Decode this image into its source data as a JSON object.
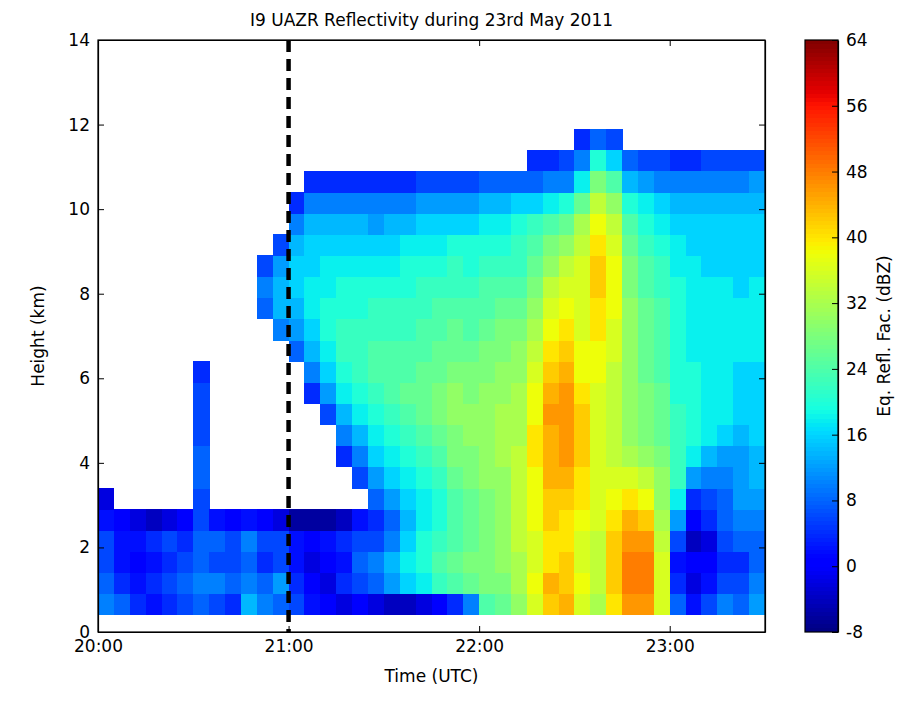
{
  "chart_data": {
    "type": "heatmap",
    "title": "I9 UAZR Reflectivity during 23rd May 2011",
    "xlabel": "Time (UTC)",
    "ylabel": "Height (km)",
    "xlim": [
      1200,
      1410
    ],
    "xticks": [
      {
        "value": 1200,
        "label": "20:00"
      },
      {
        "value": 1260,
        "label": "21:00"
      },
      {
        "value": 1320,
        "label": "22:00"
      },
      {
        "value": 1380,
        "label": "23:00"
      }
    ],
    "ylim": [
      0,
      14
    ],
    "yticks": [
      0,
      2,
      4,
      6,
      8,
      10,
      12,
      14
    ],
    "vlines": [
      1260
    ],
    "colorbar": {
      "label": "Eq. Refl. Fac. (dBZ)",
      "lim": [
        -8,
        64
      ],
      "ticks": [
        -8,
        0,
        8,
        16,
        24,
        32,
        40,
        48,
        56,
        64
      ]
    },
    "x_bins": [
      1200,
      1205,
      1210,
      1215,
      1220,
      1225,
      1230,
      1235,
      1240,
      1245,
      1250,
      1255,
      1260,
      1265,
      1270,
      1275,
      1280,
      1285,
      1290,
      1295,
      1300,
      1305,
      1310,
      1315,
      1320,
      1325,
      1330,
      1335,
      1340,
      1345,
      1350,
      1355,
      1360,
      1365,
      1370,
      1375,
      1380,
      1385,
      1390,
      1395,
      1400,
      1405,
      1410
    ],
    "y_bins": [
      0.4,
      0.9,
      1.4,
      1.9,
      2.4,
      2.9,
      3.4,
      3.9,
      4.4,
      4.9,
      5.4,
      5.9,
      6.4,
      6.9,
      7.4,
      7.9,
      8.4,
      8.9,
      9.4,
      9.9,
      10.4,
      10.9,
      11.4,
      11.9
    ],
    "cells": [
      [
        10,
        8,
        6,
        6,
        2,
        -2,
        null,
        null,
        null,
        null,
        null,
        null,
        null,
        null,
        null,
        null,
        null,
        null,
        null,
        null,
        null,
        null,
        null
      ],
      [
        8,
        4,
        2,
        2,
        0,
        null,
        null,
        null,
        null,
        null,
        null,
        null,
        null,
        null,
        null,
        null,
        null,
        null,
        null,
        null,
        null,
        null,
        null
      ],
      [
        4,
        2,
        0,
        2,
        -2,
        null,
        null,
        null,
        null,
        null,
        null,
        null,
        null,
        null,
        null,
        null,
        null,
        null,
        null,
        null,
        null,
        null,
        null
      ],
      [
        2,
        4,
        2,
        4,
        -4,
        null,
        null,
        null,
        null,
        null,
        null,
        null,
        null,
        null,
        null,
        null,
        null,
        null,
        null,
        null,
        null,
        null,
        null
      ],
      [
        4,
        6,
        4,
        6,
        -2,
        null,
        null,
        null,
        null,
        null,
        null,
        null,
        null,
        null,
        null,
        null,
        null,
        null,
        null,
        null,
        null,
        null,
        null
      ],
      [
        6,
        8,
        6,
        4,
        0,
        null,
        null,
        null,
        null,
        null,
        null,
        null,
        null,
        null,
        null,
        null,
        null,
        null,
        null,
        null,
        null,
        null,
        null
      ],
      [
        8,
        10,
        8,
        8,
        6,
        6,
        8,
        8,
        6,
        6,
        6,
        4,
        null,
        null,
        null,
        null,
        null,
        null,
        null,
        null,
        null,
        null,
        null
      ],
      [
        6,
        10,
        6,
        8,
        2,
        null,
        null,
        null,
        null,
        null,
        null,
        null,
        null,
        null,
        null,
        null,
        null,
        null,
        null,
        null,
        null,
        null,
        null
      ],
      [
        4,
        8,
        6,
        6,
        0,
        null,
        null,
        null,
        null,
        null,
        null,
        null,
        null,
        null,
        null,
        null,
        null,
        null,
        null,
        null,
        null,
        null,
        null
      ],
      [
        14,
        10,
        8,
        10,
        2,
        null,
        null,
        null,
        null,
        null,
        null,
        null,
        null,
        null,
        null,
        null,
        null,
        null,
        null,
        null,
        null,
        null,
        null
      ],
      [
        10,
        8,
        4,
        6,
        0,
        null,
        null,
        null,
        null,
        null,
        null,
        null,
        null,
        null,
        8,
        10,
        6,
        null,
        null,
        null,
        null,
        null,
        null
      ],
      [
        8,
        12,
        6,
        6,
        -2,
        null,
        null,
        null,
        null,
        null,
        null,
        null,
        null,
        10,
        14,
        14,
        12,
        6,
        null,
        null,
        null,
        null,
        null
      ],
      [
        6,
        4,
        2,
        2,
        -6,
        null,
        null,
        null,
        null,
        null,
        null,
        null,
        8,
        12,
        14,
        16,
        16,
        14,
        10,
        4,
        null,
        null,
        null
      ],
      [
        2,
        0,
        -2,
        0,
        -6,
        null,
        null,
        null,
        null,
        null,
        4,
        10,
        14,
        16,
        18,
        18,
        16,
        16,
        14,
        10,
        4,
        null,
        null
      ],
      [
        0,
        -2,
        0,
        2,
        -6,
        null,
        null,
        null,
        null,
        6,
        12,
        16,
        18,
        20,
        20,
        18,
        18,
        16,
        14,
        10,
        4,
        null,
        null
      ],
      [
        -2,
        4,
        2,
        4,
        -4,
        null,
        null,
        4,
        10,
        14,
        18,
        20,
        22,
        22,
        20,
        20,
        18,
        16,
        14,
        10,
        4,
        null,
        null
      ],
      [
        0,
        6,
        8,
        6,
        2,
        null,
        6,
        10,
        14,
        18,
        20,
        22,
        22,
        22,
        20,
        20,
        18,
        16,
        14,
        10,
        4,
        null,
        null
      ],
      [
        -2,
        8,
        10,
        6,
        4,
        8,
        12,
        16,
        18,
        20,
        22,
        24,
        24,
        22,
        22,
        20,
        18,
        16,
        12,
        10,
        4,
        null,
        null
      ],
      [
        -4,
        12,
        14,
        10,
        8,
        12,
        16,
        18,
        20,
        22,
        24,
        24,
        24,
        22,
        22,
        20,
        18,
        16,
        14,
        10,
        4,
        null,
        null
      ],
      [
        -4,
        16,
        18,
        16,
        14,
        16,
        18,
        20,
        22,
        24,
        26,
        24,
        24,
        22,
        22,
        20,
        20,
        18,
        14,
        10,
        4,
        null,
        null
      ],
      [
        -2,
        18,
        20,
        20,
        18,
        18,
        20,
        22,
        24,
        26,
        26,
        26,
        24,
        24,
        22,
        22,
        20,
        18,
        16,
        12,
        6,
        null,
        null
      ],
      [
        0,
        22,
        24,
        22,
        20,
        20,
        22,
        24,
        26,
        28,
        28,
        26,
        26,
        24,
        24,
        22,
        20,
        18,
        16,
        12,
        6,
        null,
        null
      ],
      [
        4,
        24,
        26,
        24,
        24,
        24,
        26,
        28,
        28,
        30,
        30,
        28,
        26,
        26,
        24,
        22,
        22,
        20,
        16,
        12,
        6,
        null,
        null
      ],
      [
        10,
        26,
        28,
        26,
        26,
        26,
        28,
        28,
        30,
        30,
        28,
        28,
        26,
        24,
        24,
        22,
        20,
        20,
        16,
        12,
        6,
        null,
        null
      ],
      [
        24,
        28,
        28,
        28,
        28,
        28,
        30,
        30,
        30,
        30,
        30,
        28,
        28,
        26,
        24,
        24,
        22,
        20,
        18,
        14,
        8,
        null,
        null
      ],
      [
        26,
        28,
        30,
        30,
        30,
        30,
        30,
        32,
        32,
        32,
        30,
        30,
        28,
        28,
        26,
        24,
        22,
        20,
        18,
        14,
        8,
        null,
        null
      ],
      [
        30,
        32,
        32,
        34,
        34,
        34,
        34,
        34,
        32,
        32,
        32,
        30,
        30,
        28,
        26,
        24,
        22,
        22,
        20,
        16,
        8,
        null,
        null
      ],
      [
        36,
        38,
        36,
        36,
        38,
        38,
        38,
        40,
        40,
        38,
        38,
        36,
        34,
        32,
        30,
        28,
        26,
        24,
        22,
        16,
        8,
        4,
        null
      ],
      [
        42,
        44,
        40,
        40,
        42,
        42,
        44,
        44,
        44,
        46,
        44,
        42,
        40,
        38,
        36,
        34,
        30,
        28,
        24,
        18,
        10,
        4,
        null
      ],
      [
        44,
        42,
        42,
        40,
        40,
        42,
        44,
        46,
        46,
        46,
        46,
        44,
        42,
        40,
        38,
        36,
        34,
        30,
        26,
        20,
        10,
        6,
        null
      ],
      [
        36,
        38,
        36,
        36,
        38,
        40,
        40,
        42,
        42,
        42,
        40,
        38,
        38,
        36,
        36,
        36,
        36,
        34,
        32,
        26,
        18,
        10,
        4
      ],
      [
        32,
        34,
        34,
        34,
        36,
        36,
        36,
        36,
        36,
        36,
        36,
        38,
        38,
        40,
        40,
        42,
        42,
        40,
        38,
        34,
        28,
        20,
        8
      ],
      [
        40,
        42,
        42,
        42,
        40,
        38,
        36,
        34,
        34,
        34,
        34,
        34,
        36,
        36,
        38,
        38,
        38,
        36,
        34,
        30,
        24,
        16,
        6
      ],
      [
        46,
        48,
        48,
        46,
        44,
        40,
        36,
        32,
        30,
        30,
        30,
        30,
        30,
        30,
        30,
        28,
        28,
        26,
        24,
        20,
        14,
        8,
        null
      ],
      [
        46,
        48,
        48,
        46,
        42,
        38,
        34,
        30,
        28,
        28,
        28,
        26,
        26,
        26,
        26,
        24,
        24,
        22,
        20,
        18,
        12,
        6,
        null
      ],
      [
        36,
        36,
        36,
        34,
        32,
        30,
        30,
        28,
        26,
        26,
        26,
        24,
        24,
        24,
        24,
        22,
        22,
        20,
        18,
        16,
        10,
        6,
        null
      ],
      [
        8,
        4,
        2,
        6,
        12,
        18,
        22,
        22,
        22,
        22,
        20,
        20,
        20,
        20,
        20,
        20,
        18,
        18,
        16,
        14,
        10,
        4,
        null
      ],
      [
        2,
        -2,
        0,
        -4,
        0,
        4,
        12,
        18,
        20,
        20,
        20,
        20,
        18,
        18,
        18,
        18,
        18,
        16,
        16,
        14,
        10,
        4,
        null
      ],
      [
        6,
        2,
        0,
        -2,
        4,
        6,
        10,
        14,
        18,
        18,
        18,
        18,
        18,
        18,
        18,
        18,
        16,
        16,
        16,
        14,
        10,
        6,
        null
      ],
      [
        10,
        6,
        4,
        6,
        8,
        8,
        10,
        12,
        16,
        18,
        18,
        18,
        18,
        18,
        18,
        18,
        16,
        16,
        16,
        14,
        10,
        6,
        null
      ],
      [
        8,
        6,
        4,
        8,
        10,
        12,
        12,
        12,
        14,
        16,
        16,
        16,
        18,
        18,
        18,
        16,
        16,
        16,
        16,
        14,
        10,
        6,
        null
      ],
      [
        12,
        10,
        8,
        8,
        10,
        12,
        14,
        14,
        16,
        16,
        16,
        16,
        18,
        18,
        18,
        18,
        16,
        16,
        16,
        14,
        12,
        6,
        null
      ]
    ]
  }
}
